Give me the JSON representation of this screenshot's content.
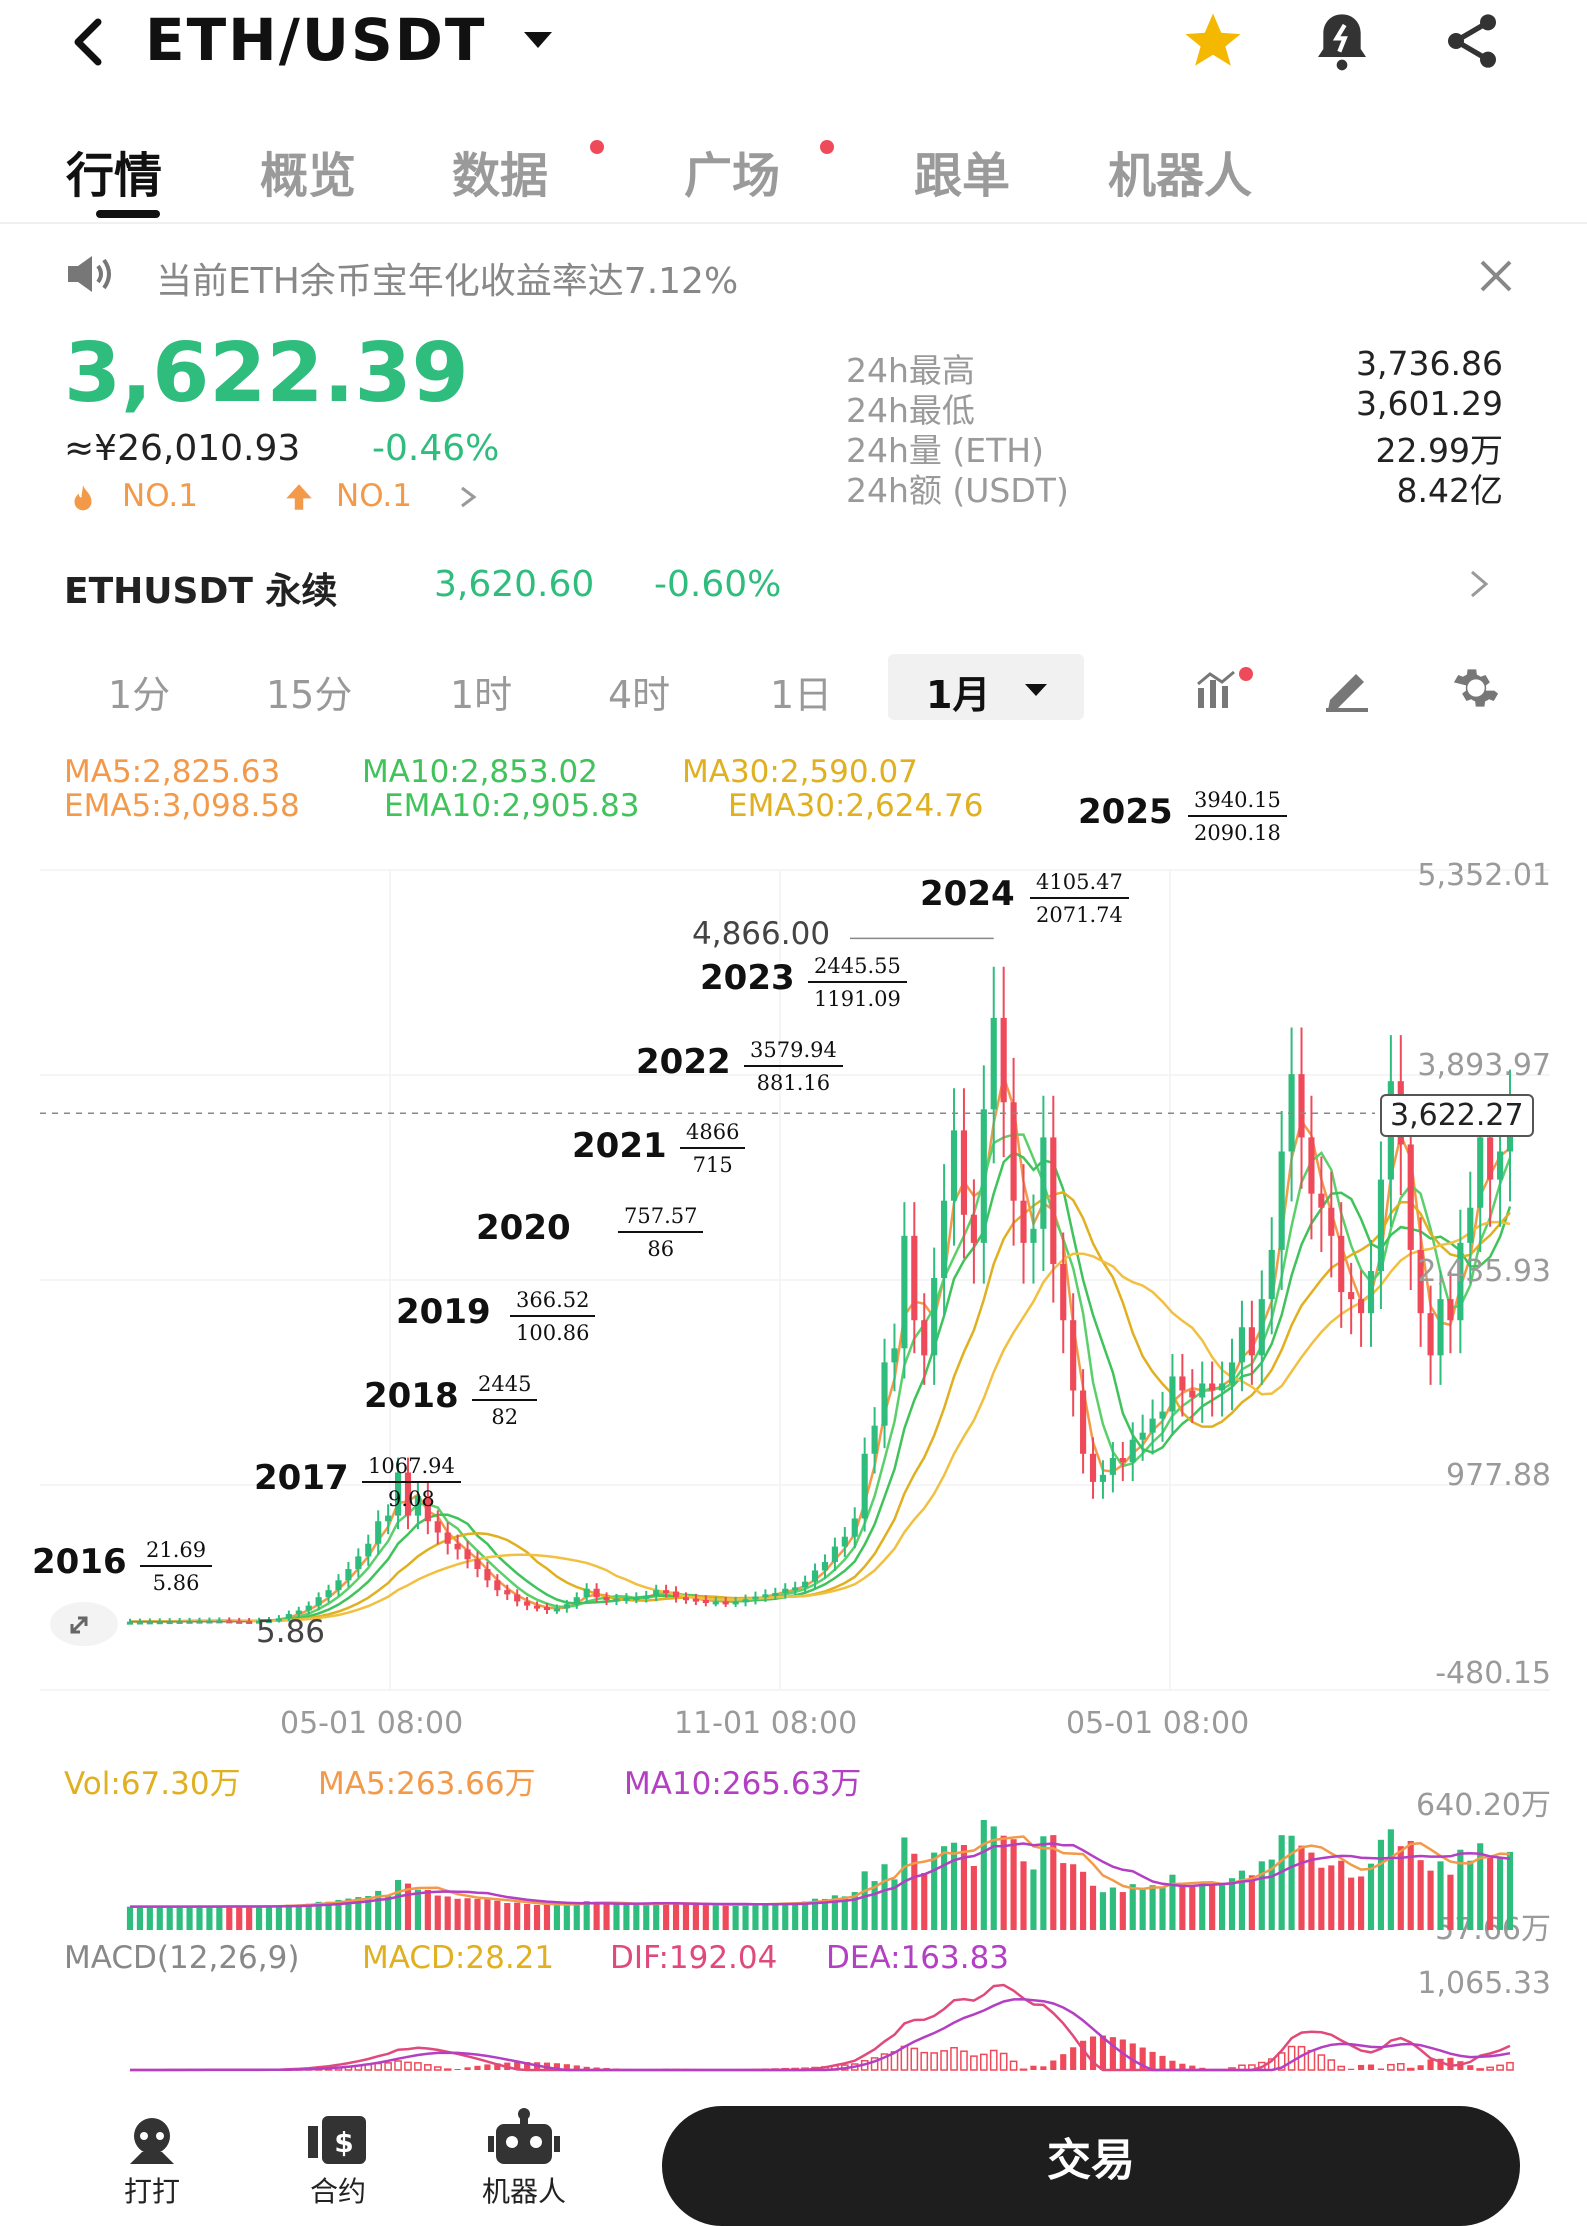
{
  "header": {
    "back_icon": "chevron-left-icon",
    "pair": "ETH/USDT",
    "star_color": "#f5b800"
  },
  "tabs": [
    {
      "label": "行情",
      "active": true,
      "dot": false
    },
    {
      "label": "概览",
      "active": false,
      "dot": false
    },
    {
      "label": "数据",
      "active": false,
      "dot": true
    },
    {
      "label": "广场",
      "active": false,
      "dot": true
    },
    {
      "label": "跟单",
      "active": false,
      "dot": false
    },
    {
      "label": "机器人",
      "active": false,
      "dot": false
    }
  ],
  "notice": {
    "text": "当前ETH余币宝年化收益率达7.12%"
  },
  "ticker": {
    "price": "3,622.39",
    "cny": "≈¥26,010.93",
    "change": "-0.46%",
    "rank1": "NO.1",
    "rank2": "NO.1",
    "stats": [
      {
        "label": "24h最高",
        "value": "3,736.86"
      },
      {
        "label": "24h最低",
        "value": "3,601.29"
      },
      {
        "label": "24h量 (ETH)",
        "value": "22.99万"
      },
      {
        "label": "24h额 (USDT)",
        "value": "8.42亿"
      }
    ]
  },
  "perp": {
    "name": "ETHUSDT 永续",
    "price": "3,620.60",
    "change": "-0.60%"
  },
  "timeframes": [
    "1分",
    "15分",
    "1时",
    "4时",
    "1日",
    "1月"
  ],
  "legend": {
    "ma5": "MA5:2,825.63",
    "ma10": "MA10:2,853.02",
    "ma30": "MA30:2,590.07",
    "ema5": "EMA5:3,098.58",
    "ema10": "EMA10:2,905.83",
    "ema30": "EMA30:2,624.76"
  },
  "chart_data": {
    "type": "candlestick",
    "y_axis_labels": [
      "5,352.01",
      "3,893.97",
      "2,435.93",
      "977.88",
      "-480.15"
    ],
    "ylim": [
      -480.15,
      5352.01
    ],
    "x_axis_labels": [
      "05-01 08:00",
      "11-01 08:00",
      "05-01 08:00"
    ],
    "current_price_tag": "3,622.27",
    "max_label": "4,866.00",
    "min_label": "5.86",
    "grid": true,
    "annotations": [
      {
        "year": "2016",
        "high": "21.69",
        "low": "5.86"
      },
      {
        "year": "2017",
        "high": "1067.94",
        "low": "9.08"
      },
      {
        "year": "2018",
        "high": "2445",
        "low": "82"
      },
      {
        "year": "2019",
        "high": "366.52",
        "low": "100.86"
      },
      {
        "year": "2020",
        "high": "757.57",
        "low": "86"
      },
      {
        "year": "2021",
        "high": "4866",
        "low": "715"
      },
      {
        "year": "2022",
        "high": "3579.94",
        "low": "881.16"
      },
      {
        "year": "2023",
        "high": "2445.55",
        "low": "1191.09"
      },
      {
        "year": "2024",
        "high": "4105.47",
        "low": "2071.74"
      },
      {
        "year": "2025",
        "high": "3940.15",
        "low": "2090.18"
      }
    ],
    "closes": [
      6,
      7,
      8,
      9,
      10,
      11,
      12,
      13,
      14,
      15,
      12,
      11,
      10,
      13,
      18,
      30,
      60,
      85,
      120,
      180,
      230,
      300,
      380,
      470,
      560,
      720,
      760,
      1067,
      760,
      900,
      720,
      640,
      560,
      520,
      450,
      380,
      300,
      230,
      200,
      150,
      120,
      110,
      90,
      100,
      130,
      180,
      240,
      180,
      160,
      170,
      175,
      180,
      190,
      230,
      220,
      180,
      170,
      160,
      150,
      150,
      145,
      150,
      165,
      185,
      200,
      210,
      240,
      250,
      290,
      370,
      430,
      540,
      610,
      740,
      1200,
      1400,
      1850,
      1950,
      2750,
      2150,
      1900,
      2450,
      3000,
      3500,
      2900,
      2700,
      3650,
      4300,
      3700,
      3000,
      2700,
      2800,
      3450,
      2550,
      2150,
      1650,
      1200,
      1000,
      1050,
      1170,
      1140,
      1300,
      1350,
      1450,
      1500,
      1750,
      1650,
      1600,
      1700,
      1650,
      1700,
      1850,
      2100,
      1900,
      2300,
      2650,
      3350,
      3900,
      3450,
      3050,
      2950,
      2750,
      2350,
      2300,
      2200,
      2500,
      3150,
      3850,
      3400,
      2650,
      2200,
      1900,
      2300,
      2150,
      2700,
      2950,
      3450,
      3150,
      3350,
      3622
    ]
  },
  "volume": {
    "vol": "Vol:67.30万",
    "ma5": "MA5:263.66万",
    "ma10": "MA10:265.63万",
    "axis_top": "640.20万",
    "axis_bottom": "57.66万"
  },
  "macd": {
    "name": "MACD(12,26,9)",
    "macd": "MACD:28.21",
    "dif": "DIF:192.04",
    "dea": "DEA:163.83",
    "axis_top": "1,065.33"
  },
  "bottom_nav": {
    "items": [
      {
        "label": "打打",
        "icon": "support-icon"
      },
      {
        "label": "合约",
        "icon": "contract-icon"
      },
      {
        "label": "机器人",
        "icon": "robot-icon"
      }
    ],
    "trade": "交易"
  }
}
